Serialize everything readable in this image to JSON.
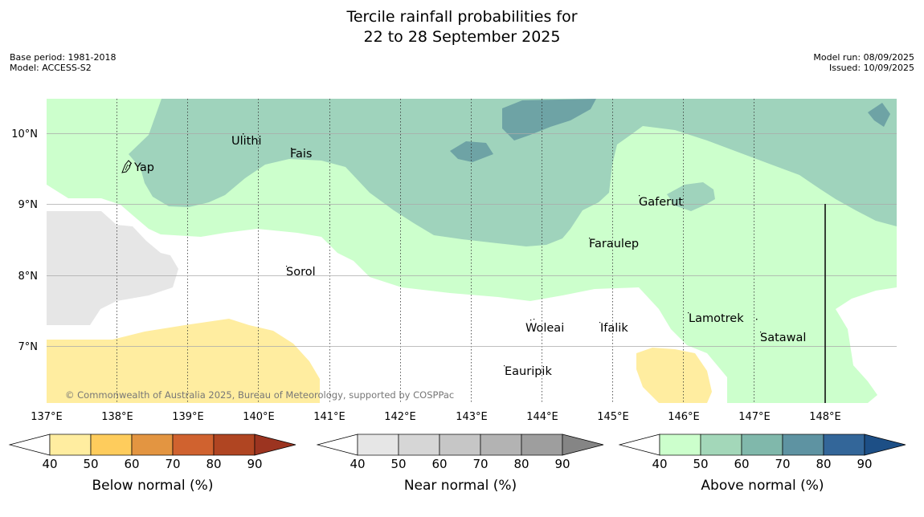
{
  "title": {
    "line1": "Tercile rainfall probabilities for",
    "line2": "22 to 28 September 2025"
  },
  "meta_left": {
    "base_period": "Base period: 1981-2018",
    "model": "Model: ACCESS-S2"
  },
  "meta_right": {
    "model_run": "Model run: 08/09/2025",
    "issued": "Issued: 10/09/2025"
  },
  "map": {
    "lon_labels": [
      "137°E",
      "138°E",
      "139°E",
      "140°E",
      "141°E",
      "142°E",
      "143°E",
      "144°E",
      "145°E",
      "146°E",
      "147°E",
      "148°E"
    ],
    "lat_labels": [
      "10°N",
      "9°N",
      "8°N",
      "7°N"
    ],
    "places": [
      "Yap",
      "Ulithi",
      "Fais",
      "Gaferut",
      "Faraulep",
      "Sorol",
      "Woleai",
      "Ifalik",
      "Lamotrek",
      "Satawal",
      "Eauripik"
    ],
    "copyright": "© Commonwealth of Australia 2025, Bureau of Meteorology, supported by COSPPac"
  },
  "legends": [
    {
      "label": "Below normal (%)",
      "ticks": [
        "40",
        "50",
        "60",
        "70",
        "80",
        "90"
      ],
      "colors": [
        "#ffffff",
        "#ffeda0",
        "#fecc5c",
        "#e39541",
        "#d0622f",
        "#b04522",
        "#9c3420"
      ]
    },
    {
      "label": "Near normal (%)",
      "ticks": [
        "40",
        "50",
        "60",
        "70",
        "80",
        "90"
      ],
      "colors": [
        "#ffffff",
        "#e6e6e6",
        "#d6d6d6",
        "#c6c6c6",
        "#b3b3b3",
        "#9e9e9e",
        "#858585"
      ]
    },
    {
      "label": "Above normal (%)",
      "ticks": [
        "40",
        "50",
        "60",
        "70",
        "80",
        "90"
      ],
      "colors": [
        "#ffffff",
        "#ccffcc",
        "#a3d7b9",
        "#80b8ab",
        "#5e93a2",
        "#336699",
        "#1d4f86"
      ]
    }
  ]
}
